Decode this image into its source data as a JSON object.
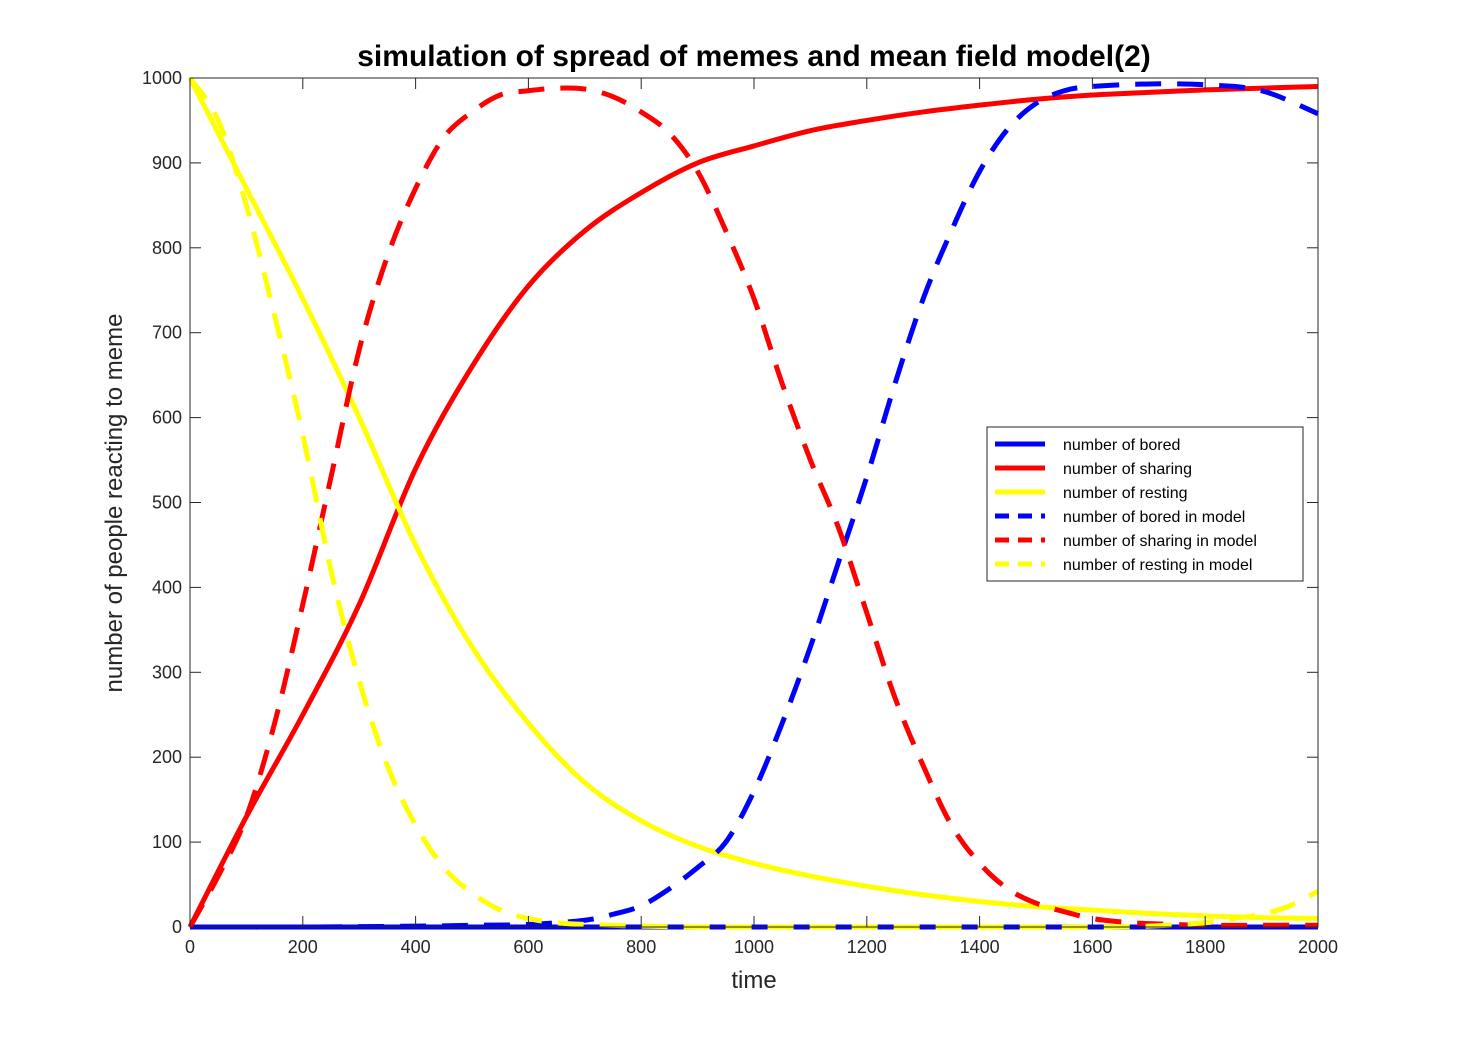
{
  "chart_data": {
    "type": "line",
    "title": "simulation of spread of memes and mean field model(2)",
    "xlabel": "time",
    "ylabel": "number of people reacting to meme",
    "xlim": [
      0,
      2000
    ],
    "ylim": [
      0,
      1000
    ],
    "xticks": [
      0,
      200,
      400,
      600,
      800,
      1000,
      1200,
      1400,
      1600,
      1800,
      2000
    ],
    "yticks": [
      0,
      100,
      200,
      300,
      400,
      500,
      600,
      700,
      800,
      900,
      1000
    ],
    "grid": false,
    "legend_position": "right",
    "series": [
      {
        "name": "number of bored",
        "color": "#0000ff",
        "style": "solid",
        "x": [
          0,
          200,
          400,
          600,
          800,
          1000,
          1200,
          1400,
          1600,
          1800,
          2000
        ],
        "y": [
          0,
          0,
          0,
          0,
          0,
          0,
          0,
          0,
          0,
          0,
          0
        ]
      },
      {
        "name": "number of sharing",
        "color": "#ff0000",
        "style": "solid",
        "x": [
          0,
          100,
          200,
          300,
          400,
          500,
          600,
          700,
          800,
          900,
          1000,
          1100,
          1200,
          1300,
          1400,
          1500,
          1600,
          1700,
          1800,
          1900,
          2000
        ],
        "y": [
          0,
          130,
          250,
          380,
          540,
          660,
          755,
          820,
          865,
          900,
          920,
          938,
          950,
          960,
          968,
          975,
          980,
          983,
          986,
          988,
          990
        ]
      },
      {
        "name": "number of resting",
        "color": "#ffff00",
        "style": "solid",
        "x": [
          0,
          100,
          200,
          300,
          400,
          500,
          600,
          700,
          800,
          900,
          1000,
          1100,
          1200,
          1300,
          1400,
          1500,
          1600,
          1700,
          1800,
          1900,
          2000
        ],
        "y": [
          1000,
          870,
          740,
          600,
          450,
          330,
          240,
          170,
          125,
          95,
          75,
          60,
          48,
          38,
          30,
          24,
          20,
          16,
          13,
          11,
          10
        ]
      },
      {
        "name": "number of bored in model",
        "color": "#0000ff",
        "style": "dashed",
        "x": [
          0,
          200,
          400,
          500,
          600,
          700,
          750,
          800,
          850,
          900,
          950,
          1000,
          1050,
          1100,
          1150,
          1200,
          1250,
          1300,
          1350,
          1400,
          1450,
          1500,
          1550,
          1600,
          1700,
          1800,
          1900,
          2000
        ],
        "y": [
          0,
          0,
          1,
          2,
          3,
          8,
          15,
          25,
          45,
          70,
          100,
          160,
          240,
          330,
          430,
          530,
          640,
          740,
          820,
          890,
          940,
          970,
          985,
          990,
          993,
          992,
          985,
          958
        ]
      },
      {
        "name": "number of sharing in model",
        "color": "#ff0000",
        "style": "dashed",
        "x": [
          0,
          50,
          100,
          150,
          200,
          250,
          300,
          350,
          400,
          450,
          500,
          550,
          600,
          650,
          700,
          750,
          800,
          850,
          900,
          950,
          1000,
          1050,
          1100,
          1150,
          1200,
          1250,
          1300,
          1350,
          1400,
          1450,
          1500,
          1550,
          1600,
          1650,
          1700,
          1800,
          1900,
          2000
        ],
        "y": [
          0,
          60,
          130,
          240,
          380,
          530,
          680,
          790,
          870,
          930,
          960,
          980,
          985,
          988,
          987,
          978,
          960,
          935,
          890,
          820,
          740,
          640,
          550,
          470,
          370,
          270,
          190,
          120,
          75,
          45,
          28,
          18,
          10,
          6,
          4,
          2,
          2,
          2
        ]
      },
      {
        "name": "number of resting in model",
        "color": "#ffff00",
        "style": "dashed",
        "x": [
          0,
          50,
          100,
          150,
          200,
          250,
          300,
          350,
          400,
          450,
          500,
          550,
          600,
          650,
          700,
          800,
          900,
          1000,
          1200,
          1400,
          1600,
          1700,
          1800,
          1850,
          1900,
          1950,
          2000
        ],
        "y": [
          1000,
          950,
          850,
          720,
          580,
          420,
          290,
          190,
          120,
          70,
          40,
          20,
          10,
          5,
          3,
          1,
          0,
          0,
          0,
          0,
          0,
          1,
          5,
          10,
          15,
          25,
          42
        ]
      }
    ]
  }
}
